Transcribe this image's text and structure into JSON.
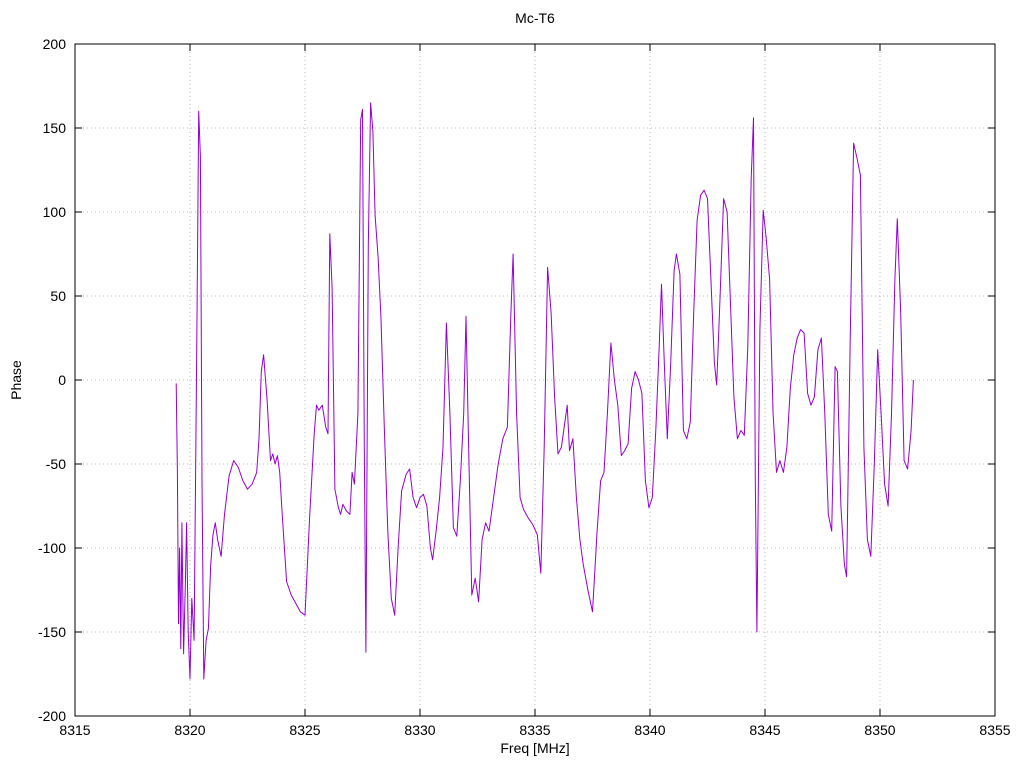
{
  "chart_data": {
    "type": "line",
    "title": "Mc-T6",
    "xlabel": "Freq [MHz]",
    "ylabel": "Phase",
    "xlim": [
      8315,
      8355
    ],
    "ylim": [
      -200,
      200
    ],
    "x_ticks": [
      8315,
      8320,
      8325,
      8330,
      8335,
      8340,
      8345,
      8350,
      8355
    ],
    "y_ticks": [
      -200,
      -150,
      -100,
      -50,
      0,
      50,
      100,
      150,
      200
    ],
    "grid": true,
    "grid_color": "#b8b8b8",
    "border_color": "#000000",
    "line_color": "#9400d3",
    "series": [
      {
        "name": "Mc-T6",
        "points": [
          [
            8319.4,
            -2
          ],
          [
            8319.45,
            -55
          ],
          [
            8319.5,
            -145
          ],
          [
            8319.55,
            -100
          ],
          [
            8319.6,
            -160
          ],
          [
            8319.65,
            -85
          ],
          [
            8319.72,
            -163
          ],
          [
            8319.8,
            -120
          ],
          [
            8319.85,
            -85
          ],
          [
            8319.92,
            -150
          ],
          [
            8320.0,
            -178
          ],
          [
            8320.08,
            -130
          ],
          [
            8320.18,
            -155
          ],
          [
            8320.3,
            30
          ],
          [
            8320.38,
            160
          ],
          [
            8320.45,
            133
          ],
          [
            8320.52,
            -60
          ],
          [
            8320.6,
            -178
          ],
          [
            8320.7,
            -155
          ],
          [
            8320.8,
            -148
          ],
          [
            8320.9,
            -110
          ],
          [
            8321.0,
            -92
          ],
          [
            8321.1,
            -85
          ],
          [
            8321.2,
            -95
          ],
          [
            8321.35,
            -105
          ],
          [
            8321.5,
            -80
          ],
          [
            8321.7,
            -57
          ],
          [
            8321.9,
            -48
          ],
          [
            8322.1,
            -52
          ],
          [
            8322.3,
            -60
          ],
          [
            8322.5,
            -65
          ],
          [
            8322.7,
            -62
          ],
          [
            8322.9,
            -55
          ],
          [
            8323.0,
            -35
          ],
          [
            8323.1,
            5
          ],
          [
            8323.2,
            15
          ],
          [
            8323.35,
            -12
          ],
          [
            8323.5,
            -48
          ],
          [
            8323.6,
            -44
          ],
          [
            8323.7,
            -50
          ],
          [
            8323.8,
            -45
          ],
          [
            8323.9,
            -55
          ],
          [
            8324.0,
            -78
          ],
          [
            8324.2,
            -120
          ],
          [
            8324.4,
            -128
          ],
          [
            8324.6,
            -133
          ],
          [
            8324.8,
            -138
          ],
          [
            8325.0,
            -140
          ],
          [
            8325.2,
            -82
          ],
          [
            8325.4,
            -32
          ],
          [
            8325.5,
            -15
          ],
          [
            8325.6,
            -18
          ],
          [
            8325.75,
            -15
          ],
          [
            8325.9,
            -28
          ],
          [
            8326.0,
            -32
          ],
          [
            8326.08,
            87
          ],
          [
            8326.18,
            55
          ],
          [
            8326.3,
            -65
          ],
          [
            8326.45,
            -76
          ],
          [
            8326.55,
            -80
          ],
          [
            8326.65,
            -74
          ],
          [
            8326.8,
            -78
          ],
          [
            8326.95,
            -80
          ],
          [
            8327.05,
            -55
          ],
          [
            8327.15,
            -62
          ],
          [
            8327.3,
            -20
          ],
          [
            8327.42,
            155
          ],
          [
            8327.5,
            161
          ],
          [
            8327.58,
            -40
          ],
          [
            8327.65,
            -162
          ],
          [
            8327.75,
            80
          ],
          [
            8327.85,
            165
          ],
          [
            8327.95,
            148
          ],
          [
            8328.05,
            98
          ],
          [
            8328.18,
            73
          ],
          [
            8328.3,
            38
          ],
          [
            8328.45,
            -30
          ],
          [
            8328.6,
            -90
          ],
          [
            8328.75,
            -130
          ],
          [
            8328.9,
            -140
          ],
          [
            8329.05,
            -100
          ],
          [
            8329.2,
            -66
          ],
          [
            8329.4,
            -56
          ],
          [
            8329.55,
            -53
          ],
          [
            8329.7,
            -70
          ],
          [
            8329.85,
            -76
          ],
          [
            8330.0,
            -70
          ],
          [
            8330.15,
            -68
          ],
          [
            8330.3,
            -75
          ],
          [
            8330.45,
            -100
          ],
          [
            8330.55,
            -107
          ],
          [
            8330.7,
            -90
          ],
          [
            8330.85,
            -70
          ],
          [
            8331.0,
            -40
          ],
          [
            8331.15,
            34
          ],
          [
            8331.3,
            -20
          ],
          [
            8331.45,
            -88
          ],
          [
            8331.6,
            -93
          ],
          [
            8331.75,
            -60
          ],
          [
            8331.9,
            -20
          ],
          [
            8332.0,
            38
          ],
          [
            8332.1,
            -30
          ],
          [
            8332.25,
            -128
          ],
          [
            8332.4,
            -118
          ],
          [
            8332.55,
            -132
          ],
          [
            8332.7,
            -95
          ],
          [
            8332.85,
            -85
          ],
          [
            8333.0,
            -90
          ],
          [
            8333.2,
            -70
          ],
          [
            8333.4,
            -50
          ],
          [
            8333.6,
            -35
          ],
          [
            8333.8,
            -28
          ],
          [
            8333.95,
            40
          ],
          [
            8334.05,
            75
          ],
          [
            8334.2,
            -20
          ],
          [
            8334.35,
            -70
          ],
          [
            8334.5,
            -77
          ],
          [
            8334.7,
            -82
          ],
          [
            8334.9,
            -86
          ],
          [
            8335.1,
            -92
          ],
          [
            8335.25,
            -115
          ],
          [
            8335.4,
            -40
          ],
          [
            8335.55,
            67
          ],
          [
            8335.7,
            40
          ],
          [
            8335.85,
            -10
          ],
          [
            8336.0,
            -44
          ],
          [
            8336.15,
            -40
          ],
          [
            8336.3,
            -25
          ],
          [
            8336.4,
            -15
          ],
          [
            8336.5,
            -42
          ],
          [
            8336.65,
            -35
          ],
          [
            8336.8,
            -70
          ],
          [
            8336.95,
            -95
          ],
          [
            8337.1,
            -110
          ],
          [
            8337.3,
            -125
          ],
          [
            8337.5,
            -138
          ],
          [
            8337.7,
            -90
          ],
          [
            8337.85,
            -60
          ],
          [
            8338.0,
            -55
          ],
          [
            8338.15,
            -20
          ],
          [
            8338.3,
            22
          ],
          [
            8338.45,
            0
          ],
          [
            8338.6,
            -15
          ],
          [
            8338.75,
            -45
          ],
          [
            8338.9,
            -42
          ],
          [
            8339.05,
            -38
          ],
          [
            8339.2,
            -5
          ],
          [
            8339.35,
            5
          ],
          [
            8339.5,
            0
          ],
          [
            8339.65,
            -8
          ],
          [
            8339.8,
            -60
          ],
          [
            8339.95,
            -76
          ],
          [
            8340.1,
            -70
          ],
          [
            8340.25,
            -30
          ],
          [
            8340.4,
            20
          ],
          [
            8340.5,
            57
          ],
          [
            8340.62,
            10
          ],
          [
            8340.75,
            -35
          ],
          [
            8340.9,
            10
          ],
          [
            8341.05,
            65
          ],
          [
            8341.15,
            75
          ],
          [
            8341.3,
            63
          ],
          [
            8341.45,
            -30
          ],
          [
            8341.6,
            -35
          ],
          [
            8341.75,
            -25
          ],
          [
            8341.9,
            40
          ],
          [
            8342.05,
            95
          ],
          [
            8342.2,
            110
          ],
          [
            8342.35,
            113
          ],
          [
            8342.5,
            108
          ],
          [
            8342.65,
            60
          ],
          [
            8342.8,
            10
          ],
          [
            8342.9,
            -3
          ],
          [
            8343.05,
            50
          ],
          [
            8343.2,
            108
          ],
          [
            8343.35,
            100
          ],
          [
            8343.5,
            45
          ],
          [
            8343.65,
            -10
          ],
          [
            8343.8,
            -35
          ],
          [
            8343.95,
            -30
          ],
          [
            8344.1,
            -33
          ],
          [
            8344.25,
            20
          ],
          [
            8344.4,
            120
          ],
          [
            8344.5,
            156
          ],
          [
            8344.58,
            -60
          ],
          [
            8344.65,
            -150
          ],
          [
            8344.78,
            30
          ],
          [
            8344.92,
            101
          ],
          [
            8345.05,
            85
          ],
          [
            8345.2,
            60
          ],
          [
            8345.35,
            -20
          ],
          [
            8345.5,
            -55
          ],
          [
            8345.65,
            -48
          ],
          [
            8345.8,
            -55
          ],
          [
            8345.95,
            -40
          ],
          [
            8346.1,
            -5
          ],
          [
            8346.25,
            15
          ],
          [
            8346.4,
            25
          ],
          [
            8346.55,
            30
          ],
          [
            8346.7,
            28
          ],
          [
            8346.85,
            -8
          ],
          [
            8347.0,
            -15
          ],
          [
            8347.15,
            -10
          ],
          [
            8347.3,
            18
          ],
          [
            8347.45,
            25
          ],
          [
            8347.6,
            -20
          ],
          [
            8347.75,
            -80
          ],
          [
            8347.9,
            -90
          ],
          [
            8348.05,
            8
          ],
          [
            8348.15,
            5
          ],
          [
            8348.3,
            -75
          ],
          [
            8348.45,
            -110
          ],
          [
            8348.55,
            -117
          ],
          [
            8348.7,
            20
          ],
          [
            8348.85,
            141
          ],
          [
            8349.0,
            132
          ],
          [
            8349.15,
            122
          ],
          [
            8349.3,
            -40
          ],
          [
            8349.45,
            -95
          ],
          [
            8349.6,
            -105
          ],
          [
            8349.75,
            -50
          ],
          [
            8349.9,
            18
          ],
          [
            8350.05,
            -20
          ],
          [
            8350.2,
            -62
          ],
          [
            8350.35,
            -75
          ],
          [
            8350.5,
            -20
          ],
          [
            8350.65,
            60
          ],
          [
            8350.75,
            96
          ],
          [
            8350.9,
            40
          ],
          [
            8351.05,
            -48
          ],
          [
            8351.2,
            -53
          ],
          [
            8351.35,
            -30
          ],
          [
            8351.45,
            0
          ]
        ]
      }
    ]
  }
}
